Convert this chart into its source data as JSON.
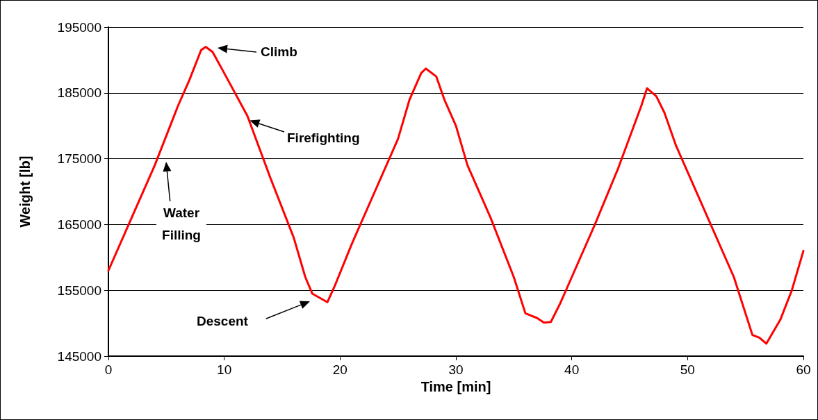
{
  "chart_data": {
    "type": "line",
    "xlabel": "Time [min]",
    "ylabel": "Weight [lb]",
    "x": [
      0,
      2,
      4,
      6,
      7,
      8,
      8.4,
      9,
      10,
      12,
      14,
      16,
      17,
      17.6,
      18.9,
      19.5,
      21,
      23,
      25,
      26,
      27,
      27.4,
      28.3,
      29,
      30,
      31,
      33,
      35,
      36,
      37,
      37.6,
      38.2,
      39,
      40,
      42,
      44,
      46,
      46.5,
      47.3,
      48,
      49,
      50,
      52,
      54,
      55.6,
      56.2,
      56.8,
      58,
      59,
      60
    ],
    "series": [
      {
        "color": "#ff0000",
        "values": [
          158000,
          166000,
          174000,
          183000,
          187000,
          191500,
          192000,
          191200,
          188000,
          181500,
          172000,
          163000,
          157000,
          154500,
          153200,
          155500,
          162000,
          170000,
          178000,
          184000,
          188000,
          188700,
          187500,
          184000,
          180000,
          174000,
          166000,
          157000,
          151500,
          150800,
          150100,
          150200,
          153000,
          157000,
          165000,
          173500,
          183000,
          185700,
          184500,
          182000,
          177000,
          173000,
          165000,
          157000,
          148200,
          147800,
          146900,
          150500,
          155000,
          161000
        ]
      }
    ],
    "xlim": [
      0,
      60
    ],
    "xticks": [
      0,
      10,
      20,
      30,
      40,
      50,
      60
    ],
    "ylim": [
      145000,
      195000
    ],
    "yticks": [
      145000,
      155000,
      165000,
      175000,
      185000,
      195000
    ],
    "grid": "y",
    "marker": "none",
    "line_style": "solid",
    "annotations": [
      "Climb",
      {
        "text": "Firefighting",
        "x": 12.2,
        "y": 180800
      },
      "Water\nFilling",
      "Descent"
    ]
  }
}
